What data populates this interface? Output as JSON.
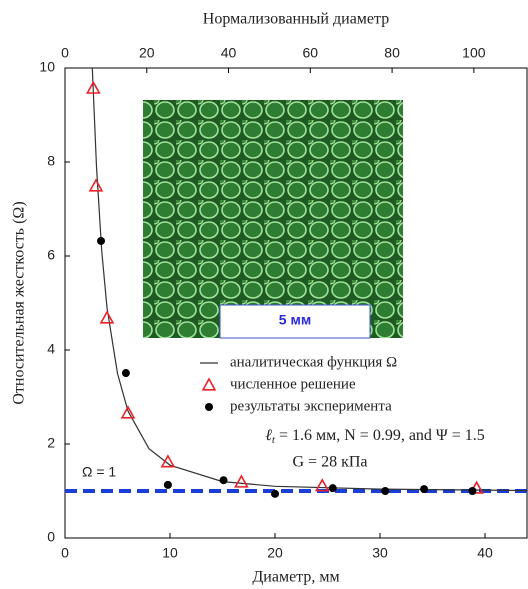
{
  "chart_data": {
    "type": "scatter",
    "xlabel": "Диаметр, мм",
    "ylabel": "Относительная жесткость  (Ω)",
    "x2label": "Нормализованный диаметр",
    "xlim": [
      0,
      44
    ],
    "ylim": [
      0,
      10
    ],
    "x2lim": [
      0,
      113
    ],
    "xticks": [
      0,
      10,
      20,
      30,
      40
    ],
    "yticks": [
      0,
      2,
      4,
      6,
      8,
      10
    ],
    "x2ticks": [
      0,
      20,
      40,
      60,
      80,
      100
    ],
    "series": [
      {
        "name": "аналитическая функция Ω",
        "kind": "line",
        "color": "#333333",
        "x": [
          2.6,
          3,
          3.5,
          4,
          5,
          6,
          8,
          10,
          15,
          20,
          30,
          44
        ],
        "values": [
          10,
          7.9,
          6.1,
          4.9,
          3.5,
          2.7,
          1.9,
          1.55,
          1.2,
          1.1,
          1.04,
          1.01
        ]
      },
      {
        "name": "численное решение",
        "kind": "triangle",
        "color": "#e8232a",
        "x": [
          2.7,
          2.95,
          4.0,
          6.0,
          9.8,
          16.8,
          24.5,
          39.2
        ],
        "values": [
          9.57,
          7.49,
          4.68,
          2.66,
          1.62,
          1.19,
          1.11,
          1.06
        ]
      },
      {
        "name": "результаты эксперимента",
        "kind": "dot",
        "color": "#000000",
        "x": [
          3.43,
          5.8,
          9.8,
          15.1,
          20,
          25.5,
          30.5,
          34.2,
          38.8
        ],
        "values": [
          6.32,
          3.51,
          1.13,
          1.23,
          0.94,
          1.06,
          1.0,
          1.04,
          1.0
        ]
      }
    ],
    "reference_line": {
      "value": 1,
      "label": "Ω = 1",
      "color": "#1a3fd6"
    },
    "params": {
      "symbol": "ℓ",
      "subscript": "t",
      "rest": " = 1.6  мм, N = 0.99, and Ψ = 1.5"
    },
    "params2": "G = 28 кПа",
    "scale_bar": "5 мм"
  }
}
